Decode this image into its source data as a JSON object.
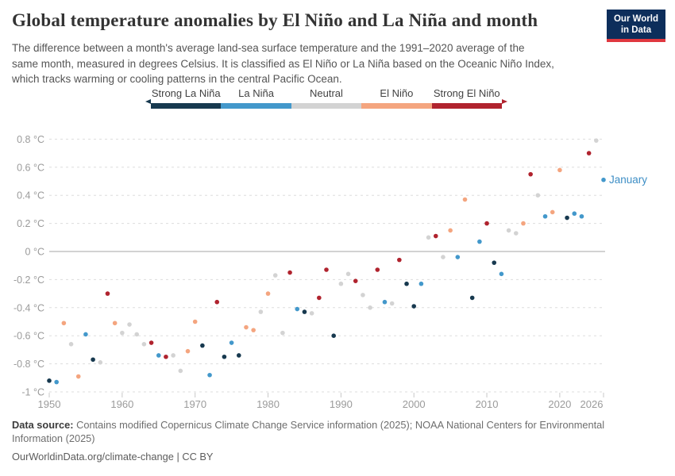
{
  "header": {
    "title": "Global temperature anomalies by El Niño and La Niña and month",
    "logo": {
      "line1": "Our World",
      "line2": "in Data",
      "bg_color": "#0d2e5b",
      "accent_color": "#e0383f"
    }
  },
  "subtitle": {
    "line1": "The difference between a month's average land-sea surface temperature and the 1991–2020 average of the",
    "line2": "same month, measured in degrees Celsius. It is classified as El Niño or La Niña based on the Oceanic Niño Index,",
    "line3": "which tracks warming or cooling patterns in the central Pacific Ocean."
  },
  "legend": {
    "items": [
      {
        "label": "Strong La Niña",
        "phase": "strong-la-nina",
        "color": "#17394f"
      },
      {
        "label": "La Niña",
        "phase": "la-nina",
        "color": "#4398cb"
      },
      {
        "label": "Neutral",
        "phase": "neutral",
        "color": "#d3d3d3"
      },
      {
        "label": "El Niño",
        "phase": "el-nino",
        "color": "#f4a57f"
      },
      {
        "label": "Strong El Niño",
        "phase": "strong-el-nino",
        "color": "#b0232e"
      }
    ]
  },
  "chart_data": {
    "type": "scatter",
    "title": "Global temperature anomalies by El Niño and La Niña and month",
    "series_label": "January",
    "series_label_color": "#3d8ec5",
    "grid": true,
    "x_axis": {
      "range": [
        1950,
        2026
      ],
      "ticks": [
        1950,
        1960,
        1970,
        1980,
        1990,
        2000,
        2010,
        2020,
        2026
      ]
    },
    "y_axis": {
      "unit": "°C",
      "range": [
        -1,
        0.8
      ],
      "ticks": [
        {
          "value": 0.8,
          "label": "0.8 °C"
        },
        {
          "value": 0.6,
          "label": "0.6 °C"
        },
        {
          "value": 0.4,
          "label": "0.4 °C"
        },
        {
          "value": 0.2,
          "label": "0.2 °C"
        },
        {
          "value": 0,
          "label": "0 °C"
        },
        {
          "value": -0.2,
          "label": "-0.2 °C"
        },
        {
          "value": -0.4,
          "label": "-0.4 °C"
        },
        {
          "value": -0.6,
          "label": "-0.6 °C"
        },
        {
          "value": -0.8,
          "label": "-0.8 °C"
        },
        {
          "value": -1,
          "label": "-1 °C"
        }
      ]
    },
    "phases": {
      "strong-la-nina": "#17394f",
      "la-nina": "#4398cb",
      "neutral": "#d3d3d3",
      "el-nino": "#f4a57f",
      "strong-el-nino": "#b0232e"
    },
    "points": [
      {
        "year": 1950,
        "value": -0.92,
        "phase": "strong-la-nina"
      },
      {
        "year": 1951,
        "value": -0.93,
        "phase": "la-nina"
      },
      {
        "year": 1952,
        "value": -0.51,
        "phase": "el-nino"
      },
      {
        "year": 1953,
        "value": -0.66,
        "phase": "neutral"
      },
      {
        "year": 1954,
        "value": -0.89,
        "phase": "el-nino"
      },
      {
        "year": 1955,
        "value": -0.59,
        "phase": "la-nina"
      },
      {
        "year": 1956,
        "value": -0.77,
        "phase": "strong-la-nina"
      },
      {
        "year": 1957,
        "value": -0.79,
        "phase": "neutral"
      },
      {
        "year": 1958,
        "value": -0.3,
        "phase": "strong-el-nino"
      },
      {
        "year": 1959,
        "value": -0.51,
        "phase": "el-nino"
      },
      {
        "year": 1960,
        "value": -0.58,
        "phase": "neutral"
      },
      {
        "year": 1961,
        "value": -0.52,
        "phase": "neutral"
      },
      {
        "year": 1962,
        "value": -0.59,
        "phase": "neutral"
      },
      {
        "year": 1963,
        "value": -0.66,
        "phase": "neutral"
      },
      {
        "year": 1964,
        "value": -0.65,
        "phase": "strong-el-nino"
      },
      {
        "year": 1965,
        "value": -0.74,
        "phase": "la-nina"
      },
      {
        "year": 1966,
        "value": -0.75,
        "phase": "strong-el-nino"
      },
      {
        "year": 1967,
        "value": -0.74,
        "phase": "neutral"
      },
      {
        "year": 1968,
        "value": -0.85,
        "phase": "neutral"
      },
      {
        "year": 1969,
        "value": -0.71,
        "phase": "el-nino"
      },
      {
        "year": 1970,
        "value": -0.5,
        "phase": "el-nino"
      },
      {
        "year": 1971,
        "value": -0.67,
        "phase": "strong-la-nina"
      },
      {
        "year": 1972,
        "value": -0.88,
        "phase": "la-nina"
      },
      {
        "year": 1973,
        "value": -0.36,
        "phase": "strong-el-nino"
      },
      {
        "year": 1974,
        "value": -0.75,
        "phase": "strong-la-nina"
      },
      {
        "year": 1975,
        "value": -0.65,
        "phase": "la-nina"
      },
      {
        "year": 1976,
        "value": -0.74,
        "phase": "strong-la-nina"
      },
      {
        "year": 1977,
        "value": -0.54,
        "phase": "el-nino"
      },
      {
        "year": 1978,
        "value": -0.56,
        "phase": "el-nino"
      },
      {
        "year": 1979,
        "value": -0.43,
        "phase": "neutral"
      },
      {
        "year": 1980,
        "value": -0.3,
        "phase": "el-nino"
      },
      {
        "year": 1981,
        "value": -0.17,
        "phase": "neutral"
      },
      {
        "year": 1982,
        "value": -0.58,
        "phase": "neutral"
      },
      {
        "year": 1983,
        "value": -0.15,
        "phase": "strong-el-nino"
      },
      {
        "year": 1984,
        "value": -0.41,
        "phase": "la-nina"
      },
      {
        "year": 1985,
        "value": -0.43,
        "phase": "strong-la-nina"
      },
      {
        "year": 1986,
        "value": -0.44,
        "phase": "neutral"
      },
      {
        "year": 1987,
        "value": -0.33,
        "phase": "strong-el-nino"
      },
      {
        "year": 1988,
        "value": -0.13,
        "phase": "strong-el-nino"
      },
      {
        "year": 1989,
        "value": -0.6,
        "phase": "strong-la-nina"
      },
      {
        "year": 1990,
        "value": -0.23,
        "phase": "neutral"
      },
      {
        "year": 1991,
        "value": -0.16,
        "phase": "neutral"
      },
      {
        "year": 1992,
        "value": -0.21,
        "phase": "strong-el-nino"
      },
      {
        "year": 1993,
        "value": -0.31,
        "phase": "neutral"
      },
      {
        "year": 1994,
        "value": -0.4,
        "phase": "neutral"
      },
      {
        "year": 1995,
        "value": -0.13,
        "phase": "strong-el-nino"
      },
      {
        "year": 1996,
        "value": -0.36,
        "phase": "la-nina"
      },
      {
        "year": 1997,
        "value": -0.37,
        "phase": "neutral"
      },
      {
        "year": 1998,
        "value": -0.06,
        "phase": "strong-el-nino"
      },
      {
        "year": 1999,
        "value": -0.23,
        "phase": "strong-la-nina"
      },
      {
        "year": 2000,
        "value": -0.39,
        "phase": "strong-la-nina"
      },
      {
        "year": 2001,
        "value": -0.23,
        "phase": "la-nina"
      },
      {
        "year": 2002,
        "value": 0.1,
        "phase": "neutral"
      },
      {
        "year": 2003,
        "value": 0.11,
        "phase": "strong-el-nino"
      },
      {
        "year": 2004,
        "value": -0.04,
        "phase": "neutral"
      },
      {
        "year": 2005,
        "value": 0.15,
        "phase": "el-nino"
      },
      {
        "year": 2006,
        "value": -0.04,
        "phase": "la-nina"
      },
      {
        "year": 2007,
        "value": 0.37,
        "phase": "el-nino"
      },
      {
        "year": 2008,
        "value": -0.33,
        "phase": "strong-la-nina"
      },
      {
        "year": 2009,
        "value": 0.07,
        "phase": "la-nina"
      },
      {
        "year": 2010,
        "value": 0.2,
        "phase": "strong-el-nino"
      },
      {
        "year": 2011,
        "value": -0.08,
        "phase": "strong-la-nina"
      },
      {
        "year": 2012,
        "value": -0.16,
        "phase": "la-nina"
      },
      {
        "year": 2013,
        "value": 0.15,
        "phase": "neutral"
      },
      {
        "year": 2014,
        "value": 0.13,
        "phase": "neutral"
      },
      {
        "year": 2015,
        "value": 0.2,
        "phase": "el-nino"
      },
      {
        "year": 2016,
        "value": 0.55,
        "phase": "strong-el-nino"
      },
      {
        "year": 2017,
        "value": 0.4,
        "phase": "neutral"
      },
      {
        "year": 2018,
        "value": 0.25,
        "phase": "la-nina"
      },
      {
        "year": 2019,
        "value": 0.28,
        "phase": "el-nino"
      },
      {
        "year": 2020,
        "value": 0.58,
        "phase": "el-nino"
      },
      {
        "year": 2021,
        "value": 0.24,
        "phase": "strong-la-nina"
      },
      {
        "year": 2022,
        "value": 0.27,
        "phase": "la-nina"
      },
      {
        "year": 2023,
        "value": 0.25,
        "phase": "la-nina"
      },
      {
        "year": 2024,
        "value": 0.7,
        "phase": "strong-el-nino"
      },
      {
        "year": 2025,
        "value": 0.79,
        "phase": "neutral"
      },
      {
        "year": 2026,
        "value": 0.51,
        "phase": "la-nina"
      }
    ]
  },
  "footer": {
    "source_label": "Data source:",
    "source_text": " Contains modified Copernicus Climate Change Service information (2025); NOAA National Centers for Environmental Information (2025)",
    "credit": "OurWorldinData.org/climate-change | CC BY"
  }
}
